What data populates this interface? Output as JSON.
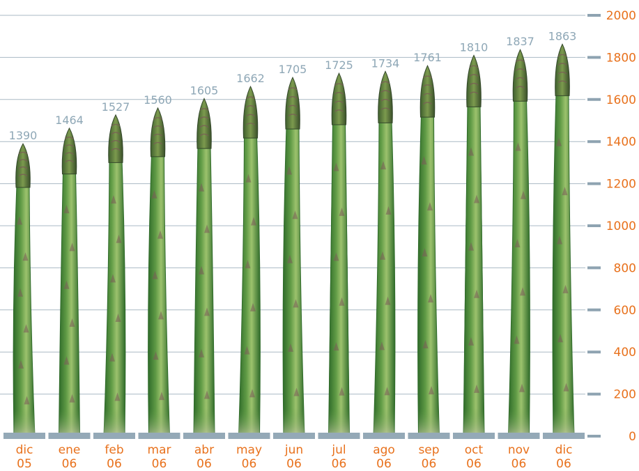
{
  "chart_data": {
    "type": "bar",
    "title": "",
    "xlabel": "",
    "ylabel": "",
    "categories": [
      [
        "dic",
        "05"
      ],
      [
        "ene",
        "06"
      ],
      [
        "feb",
        "06"
      ],
      [
        "mar",
        "06"
      ],
      [
        "abr",
        "06"
      ],
      [
        "may",
        "06"
      ],
      [
        "jun",
        "06"
      ],
      [
        "jul",
        "06"
      ],
      [
        "ago",
        "06"
      ],
      [
        "sep",
        "06"
      ],
      [
        "oct",
        "06"
      ],
      [
        "nov",
        "06"
      ],
      [
        "dic",
        "06"
      ]
    ],
    "values": [
      1390,
      1464,
      1527,
      1560,
      1605,
      1662,
      1705,
      1725,
      1734,
      1761,
      1810,
      1837,
      1863
    ],
    "ylim": [
      0,
      2000
    ],
    "yticks": [
      0,
      200,
      400,
      600,
      800,
      1000,
      1200,
      1400,
      1600,
      1800,
      2000
    ],
    "grid": true,
    "axis_side": "right",
    "bar_style": "asparagus-spear-pictograph",
    "colors": {
      "tick_label": "#e8711c",
      "data_label": "#8ea7b6",
      "gridline": "#a9b9c4",
      "tick_mark": "#8ea3b1",
      "base_segment": "#94a9b7",
      "spear_dark": "#2f6b2a",
      "spear_mid": "#5f9a45",
      "spear_light": "#9cc26d",
      "spear_tip": "#7a5a58"
    }
  }
}
